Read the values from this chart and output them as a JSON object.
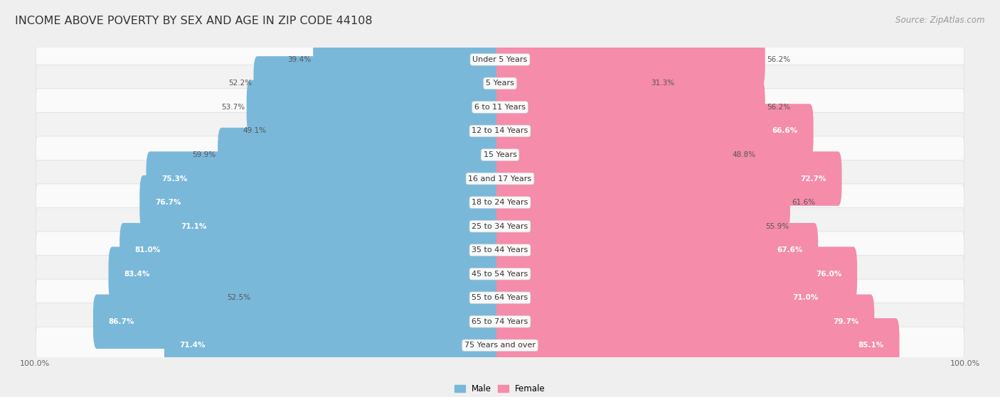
{
  "title": "INCOME ABOVE POVERTY BY SEX AND AGE IN ZIP CODE 44108",
  "source": "Source: ZipAtlas.com",
  "categories": [
    "Under 5 Years",
    "5 Years",
    "6 to 11 Years",
    "12 to 14 Years",
    "15 Years",
    "16 and 17 Years",
    "18 to 24 Years",
    "25 to 34 Years",
    "35 to 44 Years",
    "45 to 54 Years",
    "55 to 64 Years",
    "65 to 74 Years",
    "75 Years and over"
  ],
  "male_values": [
    39.4,
    52.2,
    53.7,
    49.1,
    59.9,
    75.3,
    76.7,
    71.1,
    81.0,
    83.4,
    52.5,
    86.7,
    71.4
  ],
  "female_values": [
    56.2,
    31.3,
    56.2,
    66.6,
    48.8,
    72.7,
    61.6,
    55.9,
    67.6,
    76.0,
    71.0,
    79.7,
    85.1
  ],
  "male_color": "#7ab8d9",
  "female_color": "#f48caa",
  "bg_color": "#efefef",
  "row_bg_even": "#fafafa",
  "row_bg_odd": "#f2f2f2",
  "title_fontsize": 11.5,
  "source_fontsize": 8.5,
  "label_fontsize": 8,
  "value_fontsize": 7.5,
  "legend_fontsize": 8.5,
  "xlim": 100.0,
  "bar_height": 0.68,
  "value_threshold": 62
}
